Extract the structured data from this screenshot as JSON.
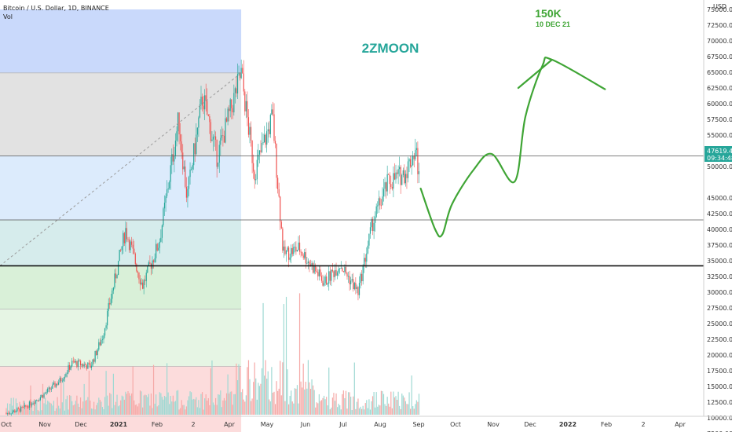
{
  "header": {
    "symbol": "Bitcoin / U.S. Dollar, 1D, BINANCE",
    "volume_label": "Vol",
    "currency": "USD"
  },
  "price_label": {
    "value": "47619.44",
    "countdown": "09:34:48",
    "color": "#26a69a"
  },
  "annotations": {
    "moon": "2ZMOON",
    "target": "150K",
    "target_date": "10 DEC 21",
    "moon_color": "#26a69a",
    "target_color": "#3fa535"
  },
  "chart_data": {
    "type": "candlestick",
    "title": "Bitcoin / U.S. Dollar, 1D, BINANCE",
    "ylim": [
      5000,
      77500
    ],
    "y_ticks": [
      "75000.00",
      "72500.00",
      "70000.00",
      "67500.00",
      "65000.00",
      "62500.00",
      "60000.00",
      "57500.00",
      "55000.00",
      "52500.00",
      "50000.00",
      "45000.00",
      "42500.00",
      "40000.00",
      "37500.00",
      "35000.00",
      "32500.00",
      "30000.00",
      "27500.00",
      "25000.00",
      "22500.00",
      "20000.00",
      "17500.00",
      "15000.00",
      "12500.00",
      "10000.00",
      "7500.00"
    ],
    "x_ticks": [
      "Oct",
      "Nov",
      "Dec",
      "2021",
      "Feb",
      "2",
      "Apr",
      "May",
      "Jun",
      "Jul",
      "Aug",
      "Sep",
      "Oct",
      "Nov",
      "Dec",
      "2022",
      "Feb",
      "2",
      "Apr"
    ],
    "last_price": 47619.44,
    "horizontal_levels": [
      51700,
      41500,
      34200
    ],
    "fib_zones": [
      {
        "from": 64900,
        "to": 75000,
        "color": "#c9d9fb"
      },
      {
        "from": 51700,
        "to": 64900,
        "color": "#e2e2e2"
      },
      {
        "from": 41500,
        "to": 51700,
        "color": "#dcebfc"
      },
      {
        "from": 34200,
        "to": 41500,
        "color": "#d6ecec"
      },
      {
        "from": 27300,
        "to": 34200,
        "color": "#d9f0d8"
      },
      {
        "from": 18200,
        "to": 27300,
        "color": "#e6f5e4"
      },
      {
        "from": 5000,
        "to": 18200,
        "color": "#fcdcdc"
      }
    ],
    "price_path": [
      [
        "2020-10-01",
        10700
      ],
      [
        "2020-10-15",
        11500
      ],
      [
        "2020-11-01",
        13700
      ],
      [
        "2020-11-15",
        16000
      ],
      [
        "2020-11-25",
        18800
      ],
      [
        "2020-12-10",
        18200
      ],
      [
        "2020-12-20",
        23000
      ],
      [
        "2021-01-08",
        40000
      ],
      [
        "2021-01-22",
        31000
      ],
      [
        "2021-02-05",
        38000
      ],
      [
        "2021-02-21",
        57500
      ],
      [
        "2021-02-28",
        45000
      ],
      [
        "2021-03-13",
        61200
      ],
      [
        "2021-03-25",
        51500
      ],
      [
        "2021-04-14",
        64800
      ],
      [
        "2021-04-25",
        49000
      ],
      [
        "2021-05-10",
        58000
      ],
      [
        "2021-05-19",
        36000
      ],
      [
        "2021-06-01",
        37000
      ],
      [
        "2021-06-22",
        31500
      ],
      [
        "2021-07-05",
        34500
      ],
      [
        "2021-07-20",
        30000
      ],
      [
        "2021-08-01",
        41000
      ],
      [
        "2021-08-14",
        47500
      ],
      [
        "2021-08-28",
        49000
      ],
      [
        "2021-09-06",
        52800
      ],
      [
        "2021-09-09",
        47619
      ]
    ],
    "projection": [
      [
        "2021-09-10",
        46500
      ],
      [
        "2021-09-22",
        40000
      ],
      [
        "2021-09-28",
        39200
      ],
      [
        "2021-10-06",
        44000
      ],
      [
        "2021-10-24",
        49500
      ],
      [
        "2021-11-08",
        52000
      ],
      [
        "2021-11-27",
        47600
      ],
      [
        "2021-12-06",
        58000
      ],
      [
        "2021-12-20",
        66000
      ],
      [
        "2021-12-28",
        67000
      ],
      [
        "2022-02-10",
        62300
      ]
    ],
    "projection_wing": [
      [
        "2021-11-30",
        62500
      ],
      [
        "2021-12-28",
        67000
      ]
    ]
  }
}
